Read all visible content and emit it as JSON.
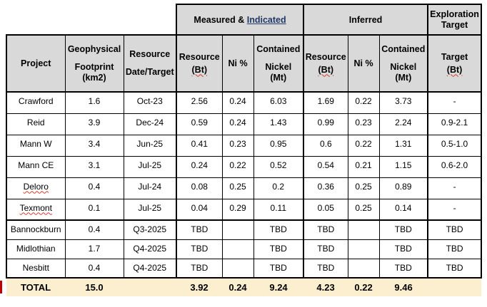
{
  "document": {
    "background": "#ffffff",
    "header_fill": "#d9d9d9",
    "total_fill": "#fcefd0",
    "border_color": "#000000",
    "link_color": "#1f3864",
    "squiggle_color": "#d83a2e",
    "change_bar_color": "#c00000"
  },
  "table": {
    "group_headers": {
      "measured_indicated_prefix": "Measured & ",
      "measured_indicated_link": "Indicated",
      "inferred": "Inferred",
      "exploration_line1": "Exploration",
      "exploration_line2": "Target"
    },
    "column_headers": {
      "project": "Project",
      "footprint_line1": "Geophysical",
      "footprint_line2": "Footprint",
      "footprint_line3": "(km2)",
      "date_line1": "Resource",
      "date_line2": "Date/Target",
      "mi_resource_line1": "Resource",
      "mi_resource_line2": "(Bt)",
      "mi_ni": "Ni %",
      "mi_contained_line1": "Contained",
      "mi_contained_line2": "Nickel",
      "mi_contained_line3": "(Mt)",
      "inf_resource_line1": "Resource",
      "inf_resource_line2": "(Bt)",
      "inf_ni": "Ni %",
      "inf_contained_line1": "Contained",
      "inf_contained_line2": "Nickel",
      "inf_contained_line3": "(Mt)",
      "target_line1": "Target",
      "target_line2": "(Bt)"
    },
    "rows": [
      {
        "cells": [
          "Crawford",
          "1.6",
          "Oct-23",
          "2.56",
          "0.24",
          "6.03",
          "1.69",
          "0.22",
          "3.73",
          "-"
        ],
        "misspelled": false
      },
      {
        "cells": [
          "Reid",
          "3.9",
          "Dec-24",
          "0.59",
          "0.24",
          "1.43",
          "0.99",
          "0.23",
          "2.24",
          "0.9-2.1"
        ],
        "misspelled": false
      },
      {
        "cells": [
          "Mann W",
          "3.4",
          "Jun-25",
          "0.41",
          "0.23",
          "0.95",
          "0.6",
          "0.22",
          "1.31",
          "0.5-1.0"
        ],
        "misspelled": false
      },
      {
        "cells": [
          "Mann CE",
          "3.1",
          "Jul-25",
          "0.24",
          "0.22",
          "0.52",
          "0.54",
          "0.21",
          "1.15",
          "0.6-2.0"
        ],
        "misspelled": false
      },
      {
        "cells": [
          "Deloro",
          "0.4",
          "Jul-24",
          "0.08",
          "0.25",
          "0.2",
          "0.36",
          "0.25",
          "0.89",
          "-"
        ],
        "misspelled": true
      },
      {
        "cells": [
          "Texmont",
          "0.1",
          "Jul-25",
          "0.04",
          "0.29",
          "0.11",
          "0.05",
          "0.25",
          "0.14",
          "-"
        ],
        "misspelled": true
      },
      {
        "cells": [
          "Bannockburn",
          "0.4",
          "Q3-2025",
          "TBD",
          "",
          "TBD",
          "TBD",
          "",
          "TBD",
          "TBD"
        ],
        "misspelled": false
      },
      {
        "cells": [
          "Midlothian",
          "1.7",
          "Q4-2025",
          "TBD",
          "",
          "TBD",
          "TBD",
          "",
          "TBD",
          "TBD"
        ],
        "misspelled": false
      },
      {
        "cells": [
          "Nesbitt",
          "0.4",
          "Q4-2025",
          "TBD",
          "",
          "TBD",
          "TBD",
          "",
          "TBD",
          "TBD"
        ],
        "misspelled": false
      }
    ],
    "total_row": {
      "label": "TOTAL",
      "footprint": "15.0",
      "date": "",
      "mi_resource": "3.92",
      "mi_ni": "0.24",
      "mi_contained": "9.24",
      "inf_resource": "4.23",
      "inf_ni": "0.22",
      "inf_contained": "9.46",
      "target": ""
    }
  }
}
